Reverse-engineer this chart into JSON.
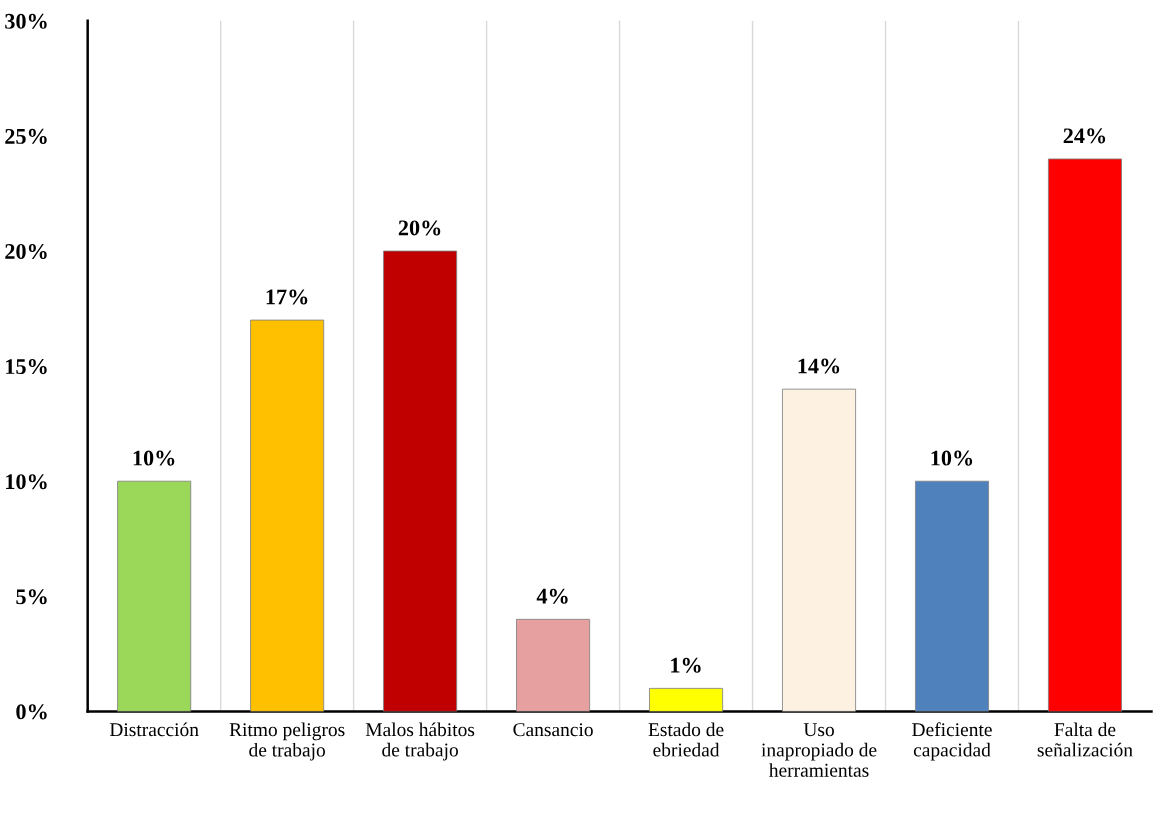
{
  "chart_data": {
    "type": "bar",
    "categories": [
      "Distracción",
      "Ritmo peligros de trabajo",
      "Malos hábitos de trabajo",
      "Cansancio",
      "Estado de ebriedad",
      "Uso inapropiado de herramientas",
      "Deficiente capacidad",
      "Falta de señalización"
    ],
    "values": [
      10,
      17,
      20,
      4,
      1,
      14,
      10,
      24
    ],
    "colors": [
      "#9bd85a",
      "#ffc000",
      "#c00000",
      "#e6a09f",
      "#ffff00",
      "#fdf1e2",
      "#4f81bd",
      "#ff0000"
    ],
    "value_labels": [
      "10%",
      "17%",
      "20%",
      "4%",
      "1%",
      "14%",
      "10%",
      "24%"
    ],
    "ylim": [
      0,
      30
    ],
    "yticks": [
      {
        "value": 0,
        "label": "0%"
      },
      {
        "value": 5,
        "label": "5%"
      },
      {
        "value": 10,
        "label": "10%"
      },
      {
        "value": 15,
        "label": "15%"
      },
      {
        "value": 20,
        "label": "20%"
      },
      {
        "value": 25,
        "label": "25%"
      },
      {
        "value": 30,
        "label": "30%"
      }
    ],
    "grid": "x"
  }
}
